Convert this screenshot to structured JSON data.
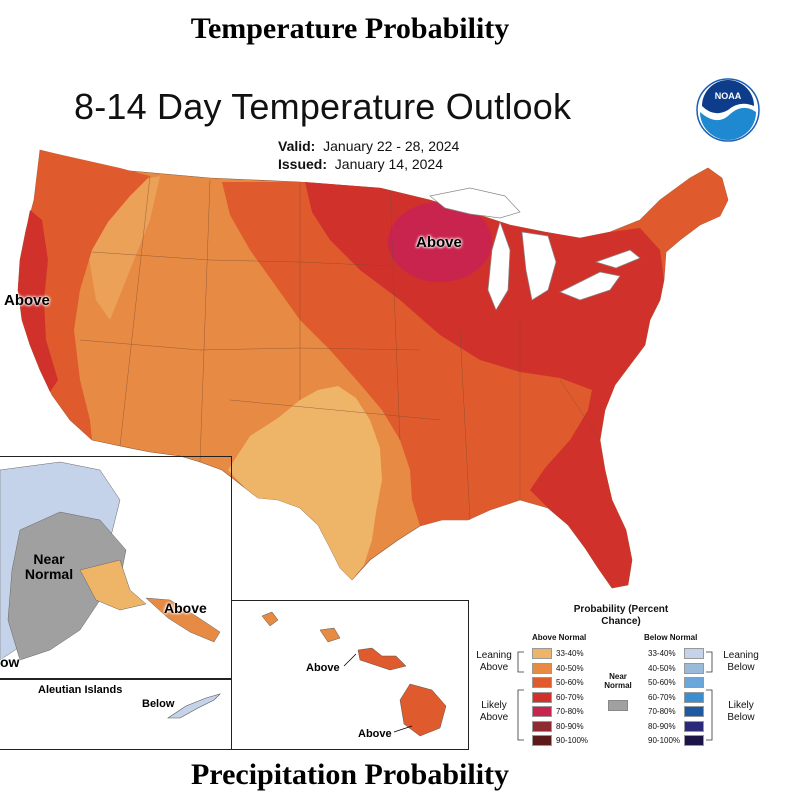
{
  "headers": {
    "top": "Temperature Probability",
    "bottom": "Precipitation Probability"
  },
  "map": {
    "title": "8-14 Day Temperature Outlook",
    "valid_label": "Valid:",
    "valid_value": "January 22 - 28, 2024",
    "issued_label": "Issued:",
    "issued_value": "January 14, 2024",
    "logo_text": "NOAA",
    "labels": {
      "above_great_lakes": "Above",
      "above_west_coast": "Above",
      "near_normal_alaska": "Near Normal",
      "above_alaska": "Above",
      "below_alaska_edge": "ow",
      "above_hawaii_1": "Above",
      "above_hawaii_2": "Above",
      "aleutian_title": "Aleutian Islands",
      "below_aleutians": "Below"
    }
  },
  "legend": {
    "title": "Probability (Percent Chance)",
    "above_header": "Above Normal",
    "below_header": "Below Normal",
    "near_normal": "Near Normal",
    "leaning_above": "Leaning Above",
    "likely_above": "Likely Above",
    "leaning_below": "Leaning Below",
    "likely_below": "Likely Below",
    "above_rows": [
      {
        "label": "33-40%",
        "color": "#eeb468"
      },
      {
        "label": "40-50%",
        "color": "#e78a44"
      },
      {
        "label": "50-60%",
        "color": "#df5b2d"
      },
      {
        "label": "60-70%",
        "color": "#d0322b"
      },
      {
        "label": "70-80%",
        "color": "#c9244d"
      },
      {
        "label": "80-90%",
        "color": "#8f2a33"
      },
      {
        "label": "90-100%",
        "color": "#5c1a1a"
      }
    ],
    "below_rows": [
      {
        "label": "33-40%",
        "color": "#c5d3ea"
      },
      {
        "label": "40-50%",
        "color": "#9bbad9"
      },
      {
        "label": "50-60%",
        "color": "#6aa7da"
      },
      {
        "label": "60-70%",
        "color": "#3a8fd0"
      },
      {
        "label": "70-80%",
        "color": "#1d5aa3"
      },
      {
        "label": "80-90%",
        "color": "#2b2a7a"
      },
      {
        "label": "90-100%",
        "color": "#1b1446"
      }
    ]
  },
  "colors": {
    "leaning_above": "#eeb468",
    "above_40_50": "#e78a44",
    "above_50_60": "#df5b2d",
    "above_60_70": "#d0322b",
    "above_70_80": "#c9244d",
    "near_normal": "#a0a0a0",
    "leaning_below": "#c5d3ea",
    "noaa_blue": "#1a5fb4"
  }
}
